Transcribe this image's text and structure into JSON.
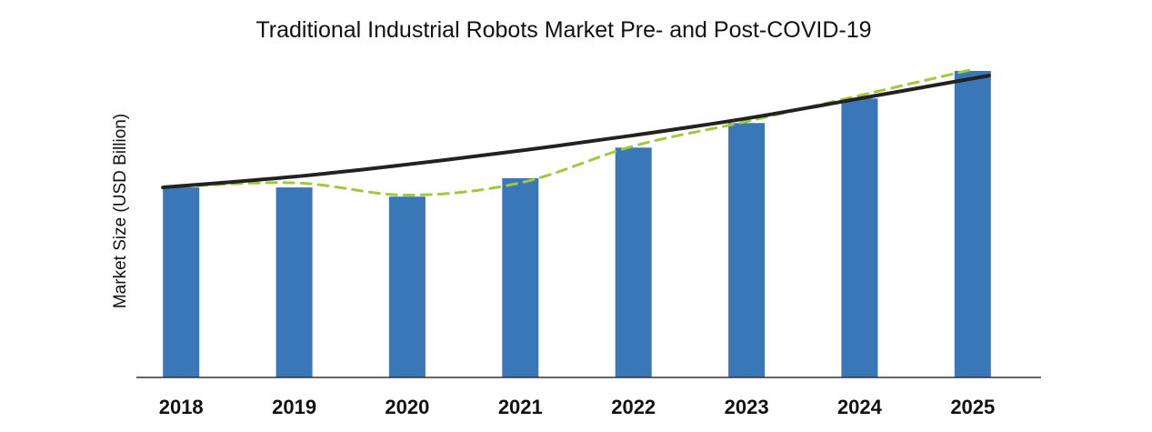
{
  "chart_data": {
    "type": "bar",
    "title": "Traditional Industrial Robots Market Pre- and Post-COVID-19",
    "xlabel": "",
    "ylabel": "Market Size (USD Billion)",
    "categories": [
      "2018",
      "2019",
      "2020",
      "2021",
      "2022",
      "2023",
      "2024",
      "2025"
    ],
    "series": [
      {
        "type": "bar",
        "values": [
          62,
          62,
          59,
          65,
          75,
          83,
          91,
          100
        ],
        "color": "#3a77b8"
      },
      {
        "type": "line",
        "style": "dashed",
        "values": [
          62,
          63.5,
          59.5,
          63.5,
          75.5,
          83.5,
          92,
          100.5
        ],
        "color": "#9dcb3c"
      },
      {
        "type": "line",
        "style": "solid",
        "values": [
          62,
          65.5,
          69.5,
          74,
          79,
          84.5,
          91,
          98.5
        ],
        "color": "#222222"
      }
    ],
    "ylim": [
      0,
      100
    ],
    "y_ticks_shown": false,
    "grid": false,
    "legend": "none"
  }
}
